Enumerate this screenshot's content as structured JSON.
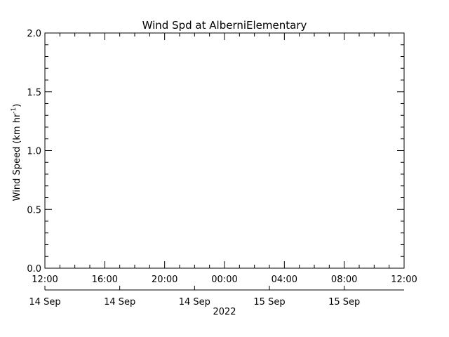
{
  "chart_data": {
    "type": "line",
    "title": "Wind Spd at AlberniElementary",
    "ylabel_base": "Wind Speed (km hr",
    "ylabel_sup": "-1",
    "ylabel_close": ")",
    "ylim": [
      0.0,
      2.0
    ],
    "y_major_ticks": [
      "0.0",
      "0.5",
      "1.0",
      "1.5",
      "2.0"
    ],
    "y_minor_step": 0.1,
    "x_tick_labels": [
      "12:00",
      "16:00",
      "20:00",
      "00:00",
      "04:00",
      "08:00",
      "12:00"
    ],
    "x_minor_per_major": 4,
    "date_labels": [
      "14 Sep",
      "14 Sep",
      "14 Sep",
      "15 Sep",
      "15 Sep"
    ],
    "year_label": "2022",
    "series": [],
    "grid": false,
    "background": "#ffffff",
    "foreground": "#000000"
  }
}
